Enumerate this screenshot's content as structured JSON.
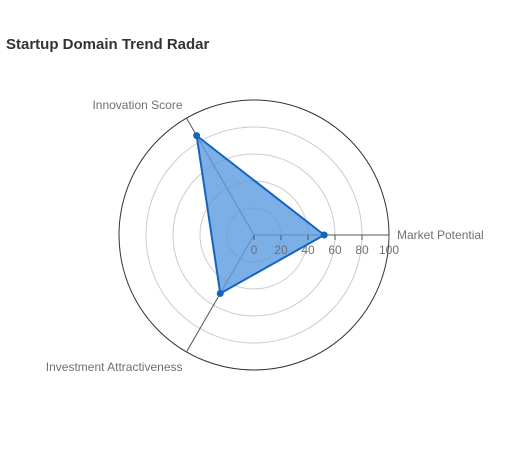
{
  "chart_data": {
    "type": "radar",
    "title": "Startup Domain Trend Radar",
    "indicators": [
      "Market Potential",
      "Innovation Score",
      "Investment Attractiveness"
    ],
    "max": 100,
    "ticks": [
      0,
      20,
      40,
      60,
      80,
      100
    ],
    "series": [
      {
        "values": [
          52,
          85,
          50
        ]
      }
    ],
    "colors": {
      "line": "#1565c0",
      "fill": "#5a9be0",
      "grid": "#cccccc",
      "outer_ring": "#333333",
      "axis_line": "#555555"
    }
  }
}
